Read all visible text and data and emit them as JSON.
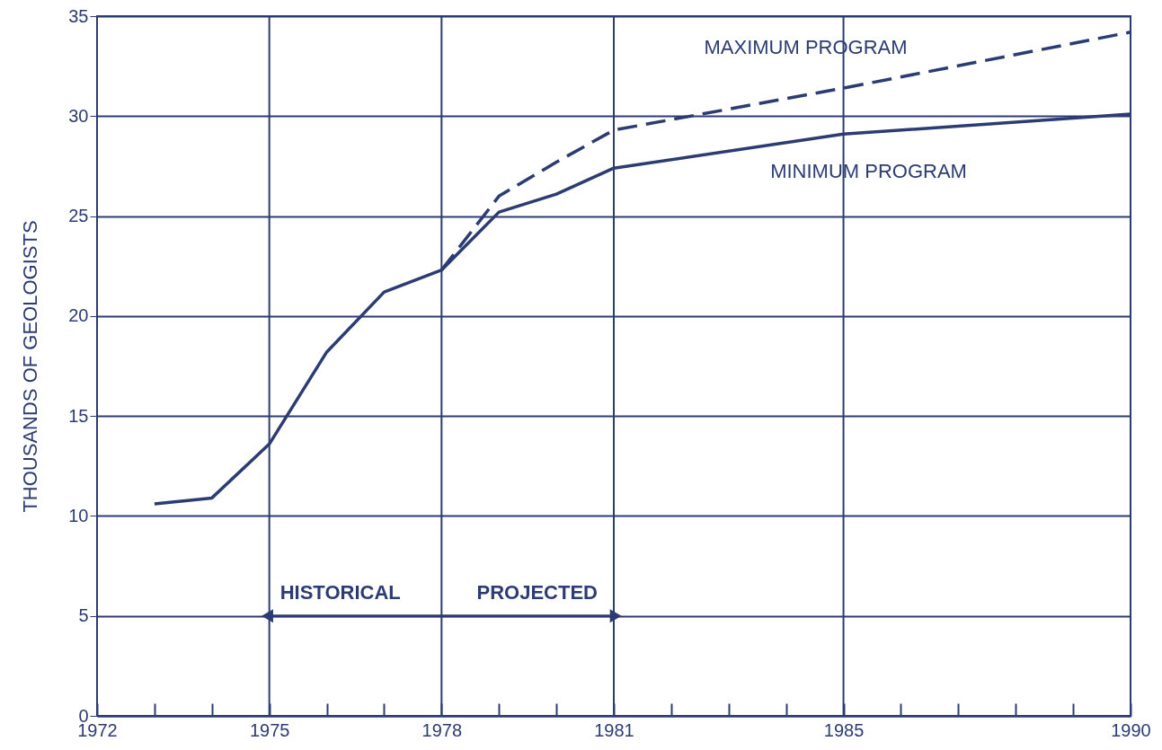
{
  "chart_data": {
    "type": "line",
    "ylabel": "THOUSANDS OF GEOLOGISTS",
    "xlim": [
      1972,
      1990
    ],
    "xticks": [
      1972,
      {
        "value": 1973,
        "label": null
      },
      {
        "value": 1974,
        "label": null
      },
      1975,
      {
        "value": 1976,
        "label": null
      },
      {
        "value": 1977,
        "label": null
      },
      1978,
      {
        "value": 1979,
        "label": null
      },
      {
        "value": 1980,
        "label": null
      },
      1981,
      {
        "value": 1982,
        "label": null
      },
      {
        "value": 1983,
        "label": null
      },
      {
        "value": 1984,
        "label": null
      },
      1985,
      {
        "value": 1986,
        "label": null
      },
      {
        "value": 1987,
        "label": null
      },
      {
        "value": 1988,
        "label": null
      },
      {
        "value": 1989,
        "label": null
      },
      1990
    ],
    "ylim": [
      0,
      35
    ],
    "yticks": [
      0,
      5,
      10,
      15,
      20,
      25,
      30,
      35
    ],
    "grid": true,
    "legend": false,
    "series": [
      {
        "name": "MINIMUM PROGRAM",
        "color": "#2c3c72",
        "line_style": "solid",
        "x": [
          1973,
          1974,
          1975,
          1976,
          1977,
          1978,
          1979,
          1980,
          1981,
          1985,
          1990
        ],
        "values": [
          10.6,
          10.9,
          13.6,
          18.2,
          21.2,
          22.3,
          25.2,
          26.1,
          27.4,
          29.1,
          30.1
        ]
      },
      {
        "name": "MAXIMUM PROGRAM",
        "color": "#2c3c72",
        "line_style": "dashed",
        "x": [
          1978,
          1979,
          1980,
          1981,
          1985,
          1990
        ],
        "values": [
          22.3,
          26.0,
          27.7,
          29.3,
          31.4,
          34.2
        ]
      }
    ],
    "annotations": [
      "HISTORICAL",
      "PROJECTED"
    ]
  }
}
